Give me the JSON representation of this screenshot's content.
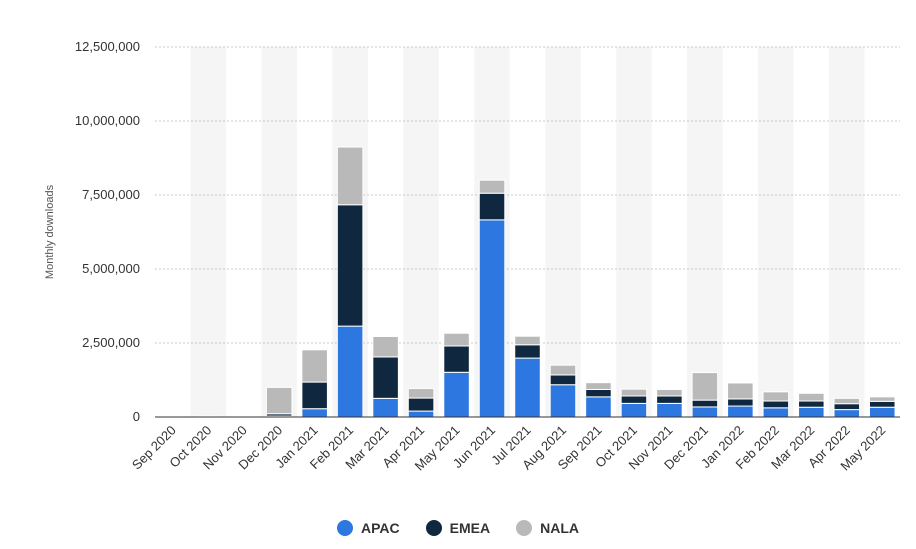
{
  "chart_data": {
    "type": "bar",
    "stacked": true,
    "ylabel": "Monthly downloads",
    "ylim": [
      0,
      12500000
    ],
    "yticks": [
      0,
      2500000,
      5000000,
      7500000,
      10000000,
      12500000
    ],
    "ytick_labels": [
      "0",
      "2,500,000",
      "5,000,000",
      "7,500,000",
      "10,000,000",
      "12,500,000"
    ],
    "grid": true,
    "legend_position": "bottom",
    "categories": [
      "Sep 2020",
      "Oct 2020",
      "Nov 2020",
      "Dec 2020",
      "Jan 2021",
      "Feb 2021",
      "Mar 2021",
      "Apr 2021",
      "May 2021",
      "Jun 2021",
      "Jul 2021",
      "Aug 2021",
      "Sep 2021",
      "Oct 2021",
      "Nov 2021",
      "Dec 2021",
      "Jan 2022",
      "Feb 2022",
      "Mar 2022",
      "Apr 2022",
      "May 2022"
    ],
    "series": [
      {
        "name": "APAC",
        "color": "#2d77e0",
        "values": [
          0,
          0,
          0,
          30000,
          280000,
          3070000,
          630000,
          200000,
          1510000,
          6660000,
          1990000,
          1090000,
          680000,
          460000,
          460000,
          340000,
          370000,
          310000,
          330000,
          250000,
          330000
        ]
      },
      {
        "name": "EMEA",
        "color": "#0f2840",
        "values": [
          0,
          10000,
          20000,
          80000,
          900000,
          4100000,
          1400000,
          440000,
          890000,
          900000,
          450000,
          330000,
          250000,
          250000,
          250000,
          230000,
          240000,
          230000,
          210000,
          200000,
          200000
        ]
      },
      {
        "name": "NALA",
        "color": "#b9b9b9",
        "values": [
          10000,
          20000,
          30000,
          890000,
          1090000,
          1950000,
          690000,
          320000,
          430000,
          440000,
          290000,
          330000,
          230000,
          230000,
          220000,
          930000,
          540000,
          310000,
          260000,
          180000,
          150000
        ]
      }
    ]
  }
}
